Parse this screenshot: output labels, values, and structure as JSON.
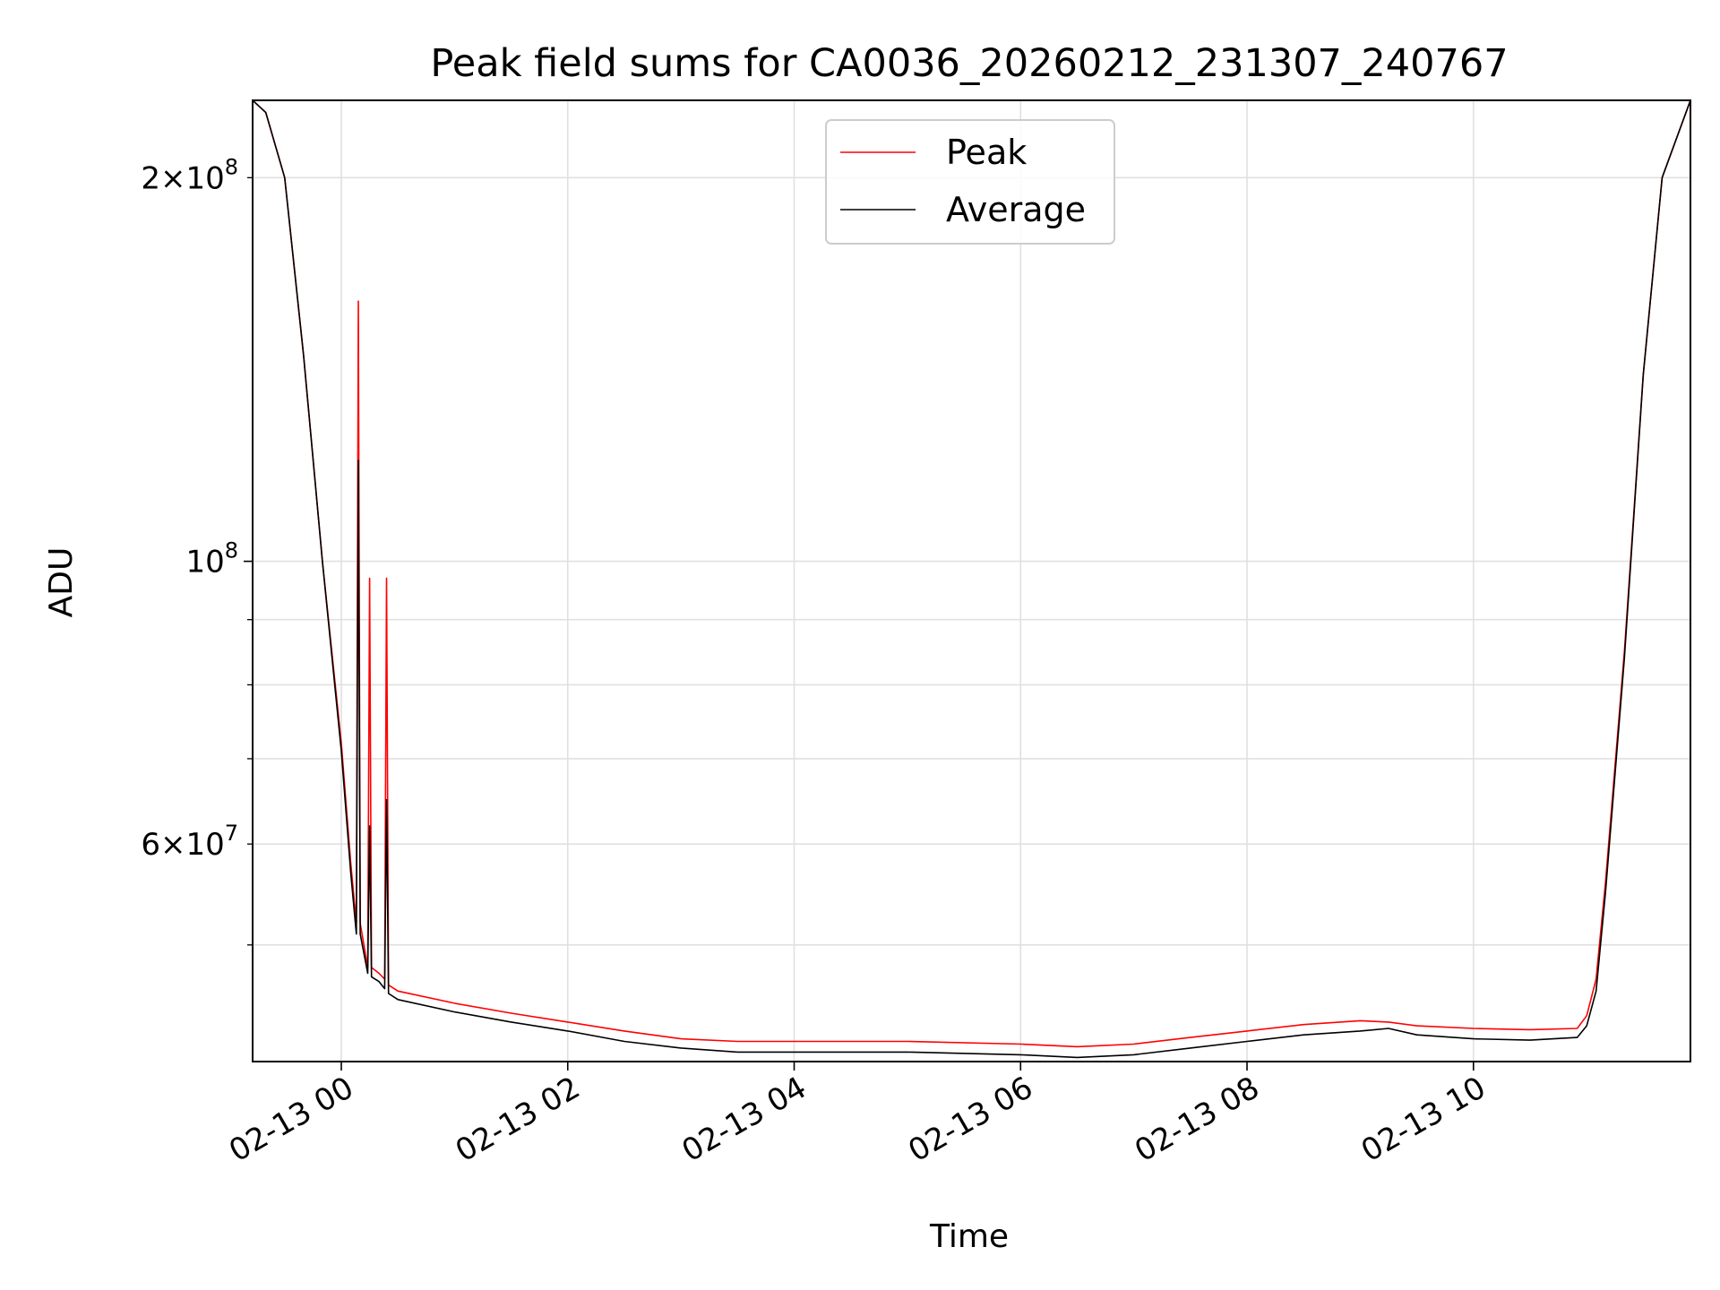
{
  "chart_data": {
    "type": "line",
    "title": "Peak field sums for CA0036_20260212_231307_240767",
    "xlabel": "Time",
    "ylabel": "ADU",
    "x_axis": {
      "kind": "datetime",
      "range": [
        "2026-02-12 23:13",
        "2026-02-13 11:55"
      ],
      "ticks": [
        {
          "value": "2026-02-13 00:00",
          "label": "02-13 00"
        },
        {
          "value": "2026-02-13 02:00",
          "label": "02-13 02"
        },
        {
          "value": "2026-02-13 04:00",
          "label": "02-13 04"
        },
        {
          "value": "2026-02-13 06:00",
          "label": "02-13 06"
        },
        {
          "value": "2026-02-13 08:00",
          "label": "02-13 08"
        },
        {
          "value": "2026-02-13 10:00",
          "label": "02-13 10"
        }
      ]
    },
    "y_axis": {
      "scale": "log",
      "range": [
        40500000,
        230000000
      ],
      "major_ticks": [
        {
          "value": 100000000,
          "base": "10",
          "exp": "8"
        }
      ],
      "minor_labeled_ticks": [
        {
          "value": 200000000,
          "mantissa": "2",
          "base": "10",
          "exp": "8"
        },
        {
          "value": 60000000,
          "mantissa": "6",
          "base": "10",
          "exp": "7"
        }
      ],
      "minor_unlabeled_ticks": [
        50000000,
        70000000,
        80000000,
        90000000
      ]
    },
    "grid": true,
    "legend": {
      "placement": "upper center",
      "entries": [
        "Peak",
        "Average"
      ]
    },
    "series": [
      {
        "name": "Peak",
        "color": "#ff0000",
        "x": [
          "2026-02-12 23:13",
          "2026-02-12 23:20",
          "2026-02-12 23:30",
          "2026-02-12 23:40",
          "2026-02-12 23:50",
          "2026-02-13 00:00",
          "2026-02-13 00:05",
          "2026-02-13 00:08",
          "2026-02-13 00:09",
          "2026-02-13 00:10",
          "2026-02-13 00:14",
          "2026-02-13 00:15",
          "2026-02-13 00:16",
          "2026-02-13 00:20",
          "2026-02-13 00:23",
          "2026-02-13 00:24",
          "2026-02-13 00:25",
          "2026-02-13 00:30",
          "2026-02-13 01:00",
          "2026-02-13 01:30",
          "2026-02-13 02:00",
          "2026-02-13 02:30",
          "2026-02-13 03:00",
          "2026-02-13 03:30",
          "2026-02-13 04:00",
          "2026-02-13 05:00",
          "2026-02-13 06:00",
          "2026-02-13 06:30",
          "2026-02-13 07:00",
          "2026-02-13 07:30",
          "2026-02-13 08:00",
          "2026-02-13 08:30",
          "2026-02-13 09:00",
          "2026-02-13 09:15",
          "2026-02-13 09:30",
          "2026-02-13 10:00",
          "2026-02-13 10:30",
          "2026-02-13 10:55",
          "2026-02-13 11:00",
          "2026-02-13 11:05",
          "2026-02-13 11:10",
          "2026-02-13 11:20",
          "2026-02-13 11:30",
          "2026-02-13 11:40",
          "2026-02-13 11:55"
        ],
        "y": [
          230000000,
          225000000,
          200000000,
          145000000,
          100000000,
          72000000,
          58000000,
          52000000,
          160000000,
          52000000,
          48000000,
          97000000,
          48000000,
          47500000,
          47000000,
          97000000,
          46500000,
          46000000,
          45000000,
          44200000,
          43500000,
          42800000,
          42200000,
          42000000,
          42000000,
          42000000,
          41800000,
          41600000,
          41800000,
          42300000,
          42800000,
          43300000,
          43600000,
          43500000,
          43200000,
          43000000,
          42900000,
          43000000,
          44000000,
          47000000,
          56000000,
          85000000,
          140000000,
          200000000,
          230000000
        ]
      },
      {
        "name": "Average",
        "color": "#000000",
        "x": [
          "2026-02-12 23:13",
          "2026-02-12 23:20",
          "2026-02-12 23:30",
          "2026-02-12 23:40",
          "2026-02-12 23:50",
          "2026-02-13 00:00",
          "2026-02-13 00:05",
          "2026-02-13 00:08",
          "2026-02-13 00:09",
          "2026-02-13 00:10",
          "2026-02-13 00:14",
          "2026-02-13 00:15",
          "2026-02-13 00:16",
          "2026-02-13 00:20",
          "2026-02-13 00:23",
          "2026-02-13 00:24",
          "2026-02-13 00:25",
          "2026-02-13 00:30",
          "2026-02-13 01:00",
          "2026-02-13 01:30",
          "2026-02-13 02:00",
          "2026-02-13 02:30",
          "2026-02-13 03:00",
          "2026-02-13 03:30",
          "2026-02-13 04:00",
          "2026-02-13 05:00",
          "2026-02-13 06:00",
          "2026-02-13 06:30",
          "2026-02-13 07:00",
          "2026-02-13 07:30",
          "2026-02-13 08:00",
          "2026-02-13 08:30",
          "2026-02-13 09:00",
          "2026-02-13 09:15",
          "2026-02-13 09:30",
          "2026-02-13 10:00",
          "2026-02-13 10:30",
          "2026-02-13 10:55",
          "2026-02-13 11:00",
          "2026-02-13 11:05",
          "2026-02-13 11:10",
          "2026-02-13 11:20",
          "2026-02-13 11:30",
          "2026-02-13 11:40",
          "2026-02-13 11:55"
        ],
        "y": [
          230000000,
          225000000,
          200000000,
          145000000,
          100000000,
          71000000,
          57000000,
          51000000,
          120000000,
          51000000,
          47500000,
          62000000,
          47200000,
          46800000,
          46200000,
          65000000,
          45800000,
          45300000,
          44300000,
          43500000,
          42800000,
          42000000,
          41500000,
          41200000,
          41200000,
          41200000,
          41000000,
          40800000,
          41000000,
          41500000,
          42000000,
          42500000,
          42800000,
          43000000,
          42500000,
          42200000,
          42100000,
          42300000,
          43200000,
          46000000,
          55000000,
          84000000,
          140000000,
          200000000,
          230000000
        ]
      }
    ]
  }
}
